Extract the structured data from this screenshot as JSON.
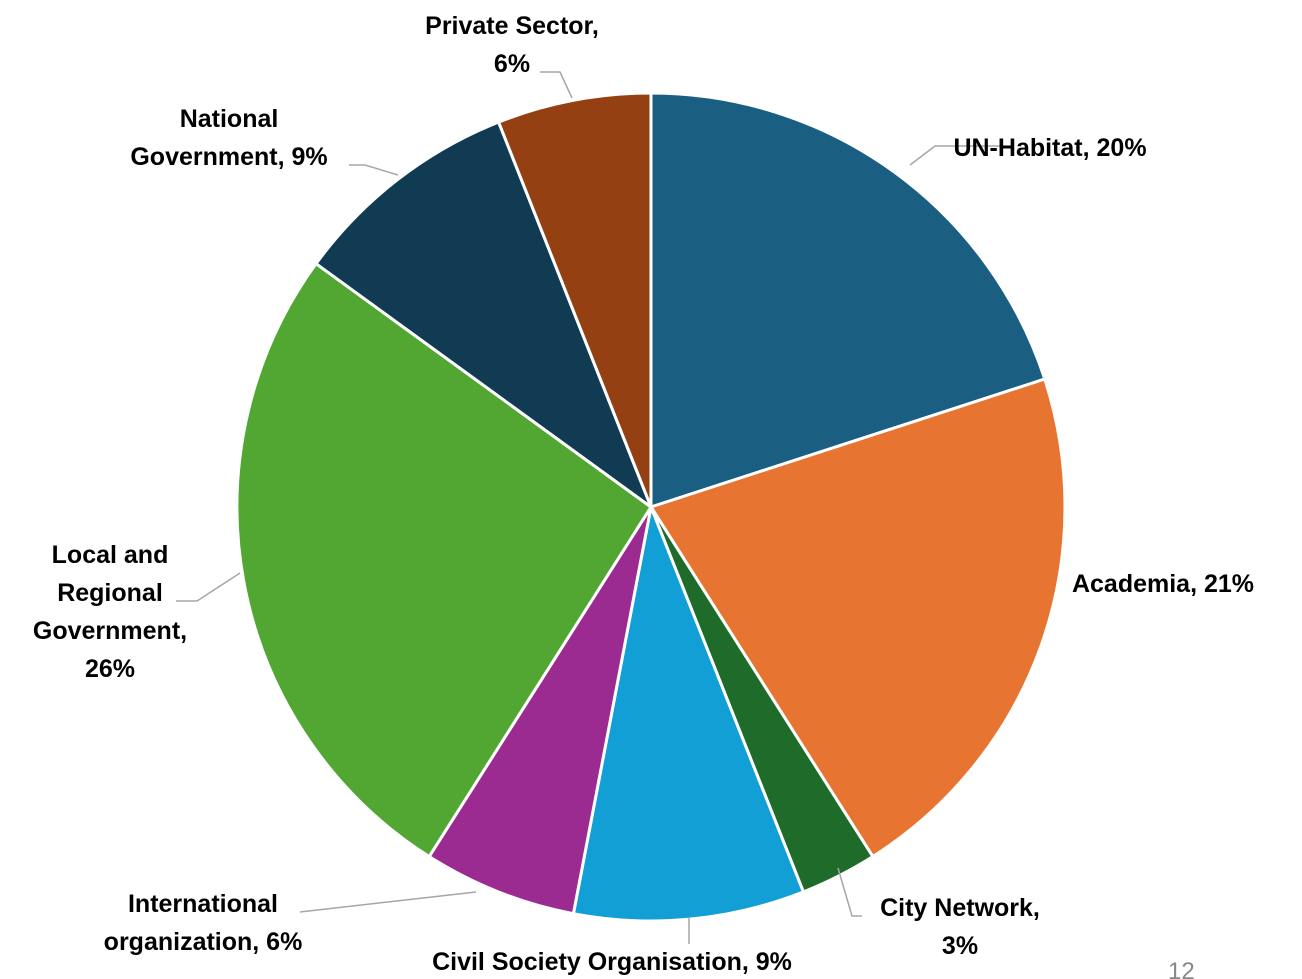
{
  "chart_data": {
    "type": "pie",
    "title": "",
    "start_angle_deg": 0,
    "direction": "clockwise",
    "legend": "none",
    "slices": [
      {
        "key": "un_habitat",
        "label": "UN-Habitat",
        "value": 20,
        "display_value": "20%",
        "color": "#1a5f82",
        "label_lines": [
          "UN-Habitat, 20%"
        ]
      },
      {
        "key": "academia",
        "label": "Academia",
        "value": 21,
        "display_value": "21%",
        "color": "#e87432",
        "label_lines": [
          "Academia, 21%"
        ]
      },
      {
        "key": "city_network",
        "label": "City Network",
        "value": 3,
        "display_value": "3%",
        "color": "#1e6b2a",
        "label_lines": [
          "City Network,",
          "3%"
        ]
      },
      {
        "key": "civil_society",
        "label": "Civil Society Organisation",
        "value": 9,
        "display_value": "9%",
        "color": "#129fd6",
        "label_lines": [
          "Civil Society Organisation, 9%"
        ]
      },
      {
        "key": "international_org",
        "label": "International organization",
        "value": 6,
        "display_value": "6%",
        "color": "#9c2b91",
        "label_lines": [
          "International",
          "organization, 6%"
        ]
      },
      {
        "key": "local_regional",
        "label": "Local and Regional Government",
        "value": 26,
        "display_value": "26%",
        "color": "#51a731",
        "label_lines": [
          "Local and",
          "Regional",
          "Government,",
          "26%"
        ]
      },
      {
        "key": "national_gov",
        "label": "National Government",
        "value": 9,
        "display_value": "9%",
        "color": "#113b52",
        "label_lines": [
          "National",
          "Government, 9%"
        ]
      },
      {
        "key": "private_sector",
        "label": "Private Sector",
        "value": 6,
        "display_value": "6%",
        "color": "#944012",
        "label_lines": [
          "Private Sector,",
          "6%"
        ]
      }
    ]
  },
  "footer": {
    "page_number": "12"
  }
}
